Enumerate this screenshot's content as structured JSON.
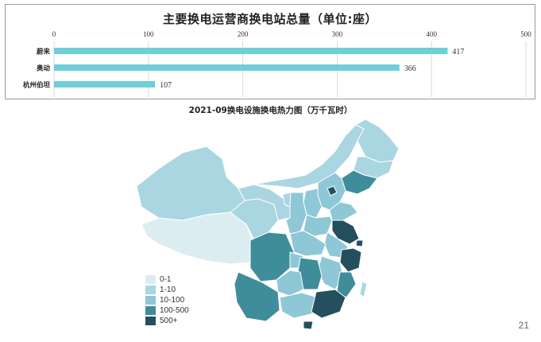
{
  "chart_data": [
    {
      "type": "bar",
      "orientation": "horizontal",
      "title": "主要换电运营商换电站总量（单位:座）",
      "categories": [
        "蔚来",
        "奥动",
        "杭州伯坦"
      ],
      "values": [
        417,
        366,
        107
      ],
      "xlim": [
        0,
        500
      ],
      "xticks": [
        0,
        100,
        200,
        300,
        400,
        500
      ],
      "grid": true,
      "colors": {
        "bar": "#6ECFD7",
        "grid": "#d9d9d9"
      }
    },
    {
      "type": "heatmap",
      "subtype": "choropleth-map",
      "title": "2021-09换电设施换电热力图（万千瓦时）",
      "legend": {
        "placement": "bottom-left",
        "items": [
          {
            "label": "0-1",
            "color": "#DCEDF2"
          },
          {
            "label": "1-10",
            "color": "#A9D6E1"
          },
          {
            "label": "10-100",
            "color": "#8EC7D6"
          },
          {
            "label": "100-500",
            "color": "#3F8D9B"
          },
          {
            "label": "500+",
            "color": "#244F5C"
          }
        ]
      }
    }
  ],
  "page_number": "21"
}
